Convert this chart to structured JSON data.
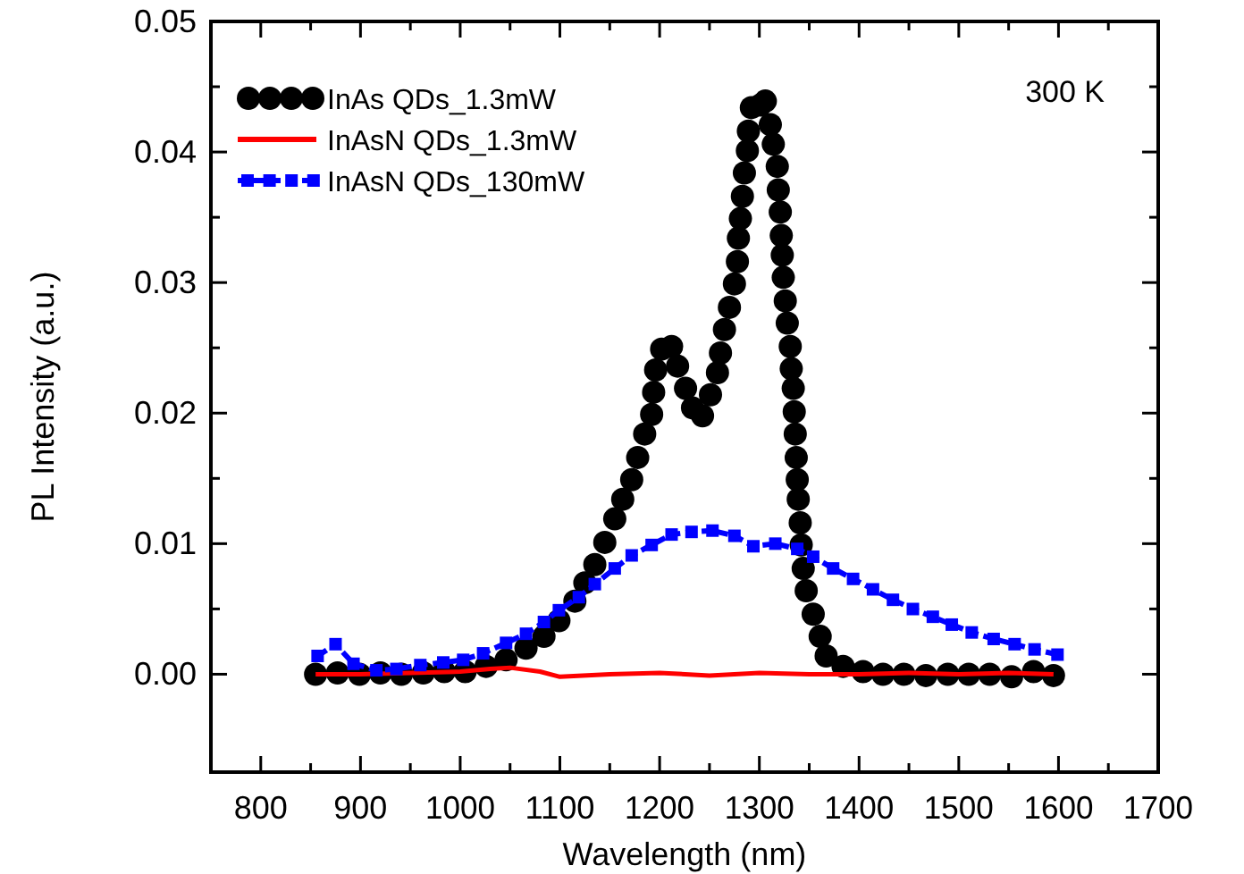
{
  "chart_data": {
    "type": "line",
    "xlabel": "Wavelength (nm)",
    "ylabel": "PL Intensity (a.u.)",
    "xlim": [
      750,
      1700
    ],
    "xticks": [
      800,
      {
        "value": 850,
        "label": null
      },
      900,
      {
        "value": 950,
        "label": null
      },
      1000,
      {
        "value": 1050,
        "label": null
      },
      1100,
      {
        "value": 1150,
        "label": null
      },
      1200,
      {
        "value": 1250,
        "label": null
      },
      1300,
      {
        "value": 1350,
        "label": null
      },
      1400,
      {
        "value": 1450,
        "label": null
      },
      1500,
      {
        "value": 1550,
        "label": null
      },
      1600,
      {
        "value": 1650,
        "label": null
      },
      1700
    ],
    "ylim": [
      -0.0075,
      0.05
    ],
    "yticks": [
      {
        "value": 0,
        "label": "0.00"
      },
      {
        "value": 0.005,
        "label": null
      },
      0.01,
      {
        "value": 0.015,
        "label": null
      },
      0.02,
      {
        "value": 0.025,
        "label": null
      },
      0.03,
      {
        "value": 0.035,
        "label": null
      },
      0.04,
      {
        "value": 0.045,
        "label": null
      },
      0.05
    ],
    "grid": false,
    "legend": "top left",
    "annotations": [
      "300 K"
    ],
    "series": [
      {
        "name": "InAs QDs_1.3mW",
        "type": "scatter",
        "color": "#000000",
        "marker": "circle",
        "x": [
          855,
          877,
          899,
          920,
          941,
          963,
          984,
          1005,
          1026,
          1046,
          1066,
          1084,
          1099,
          1115,
          1125,
          1135,
          1145,
          1155,
          1163,
          1172,
          1178,
          1185,
          1192,
          1194,
          1196,
          1202,
          1212,
          1218,
          1226,
          1233,
          1243,
          1251,
          1258,
          1261,
          1265,
          1270,
          1275,
          1278,
          1279,
          1281,
          1283,
          1285,
          1288,
          1289,
          1292,
          1301,
          1306,
          1311,
          1314,
          1318,
          1319,
          1321,
          1322,
          1323,
          1324,
          1326,
          1328,
          1331,
          1332,
          1334,
          1335,
          1336,
          1337,
          1338,
          1339,
          1341,
          1342,
          1344,
          1347,
          1354,
          1361,
          1367,
          1384,
          1404,
          1424,
          1445,
          1467,
          1489,
          1510,
          1531,
          1553,
          1575,
          1595
        ],
        "values": [
          0,
          0.0001,
          0,
          0.0001,
          0,
          0.0001,
          0.0002,
          0.0002,
          0.0006,
          0.0011,
          0.002,
          0.0029,
          0.0041,
          0.0056,
          0.007,
          0.0084,
          0.0101,
          0.0119,
          0.0134,
          0.0149,
          0.0166,
          0.0184,
          0.0199,
          0.0216,
          0.0233,
          0.0249,
          0.0251,
          0.0236,
          0.0219,
          0.0204,
          0.0198,
          0.0214,
          0.0231,
          0.0246,
          0.0264,
          0.0281,
          0.0299,
          0.0316,
          0.0334,
          0.0349,
          0.0366,
          0.0384,
          0.0401,
          0.0416,
          0.0434,
          0.0436,
          0.0439,
          0.0421,
          0.0406,
          0.0389,
          0.0371,
          0.0354,
          0.0336,
          0.0321,
          0.0304,
          0.0286,
          0.0269,
          0.0251,
          0.0234,
          0.0219,
          0.0201,
          0.0184,
          0.0166,
          0.0149,
          0.0134,
          0.0116,
          0.0099,
          0.0081,
          0.0064,
          0.0046,
          0.0029,
          0.0014,
          0.0006,
          0.0002,
          0,
          0,
          -0.0001,
          0,
          0,
          0,
          -0.0002,
          0.0002,
          -0.0001
        ]
      },
      {
        "name": "InAsN QDs_1.3mW",
        "color": "#ff0000",
        "marker": "none",
        "line_style": "solid",
        "x": [
          855,
          900,
          950,
          1000,
          1030,
          1050,
          1080,
          1100,
          1150,
          1200,
          1250,
          1300,
          1350,
          1400,
          1450,
          1500,
          1550,
          1595
        ],
        "values": [
          0,
          0,
          0.0001,
          0.0002,
          0.0004,
          0.0005,
          0.0002,
          -0.0002,
          0,
          0.0001,
          -0.0001,
          0.0001,
          0,
          0,
          0.0001,
          0,
          0.0001,
          0
        ]
      },
      {
        "name": "InAsN QDs_130mW",
        "color": "#0000ff",
        "marker": "square",
        "line_style": "dashed",
        "x": [
          857,
          875,
          893,
          916,
          936,
          960,
          983,
          1003,
          1023,
          1046,
          1066,
          1084,
          1099,
          1119,
          1135,
          1155,
          1172,
          1192,
          1212,
          1232,
          1253,
          1275,
          1294,
          1316,
          1338,
          1354,
          1374,
          1394,
          1414,
          1434,
          1454,
          1474,
          1493,
          1513,
          1535,
          1556,
          1576,
          1599
        ],
        "values": [
          0.0014,
          0.0023,
          0.0008,
          0.0003,
          0.0004,
          0.0007,
          0.0009,
          0.0011,
          0.0016,
          0.0024,
          0.0031,
          0.004,
          0.0049,
          0.0059,
          0.0069,
          0.0081,
          0.0091,
          0.0099,
          0.0107,
          0.0109,
          0.011,
          0.0106,
          0.0098,
          0.01,
          0.0096,
          0.009,
          0.0081,
          0.0073,
          0.0065,
          0.0057,
          0.005,
          0.0044,
          0.0038,
          0.0032,
          0.0027,
          0.0023,
          0.0019,
          0.0015
        ]
      }
    ]
  }
}
